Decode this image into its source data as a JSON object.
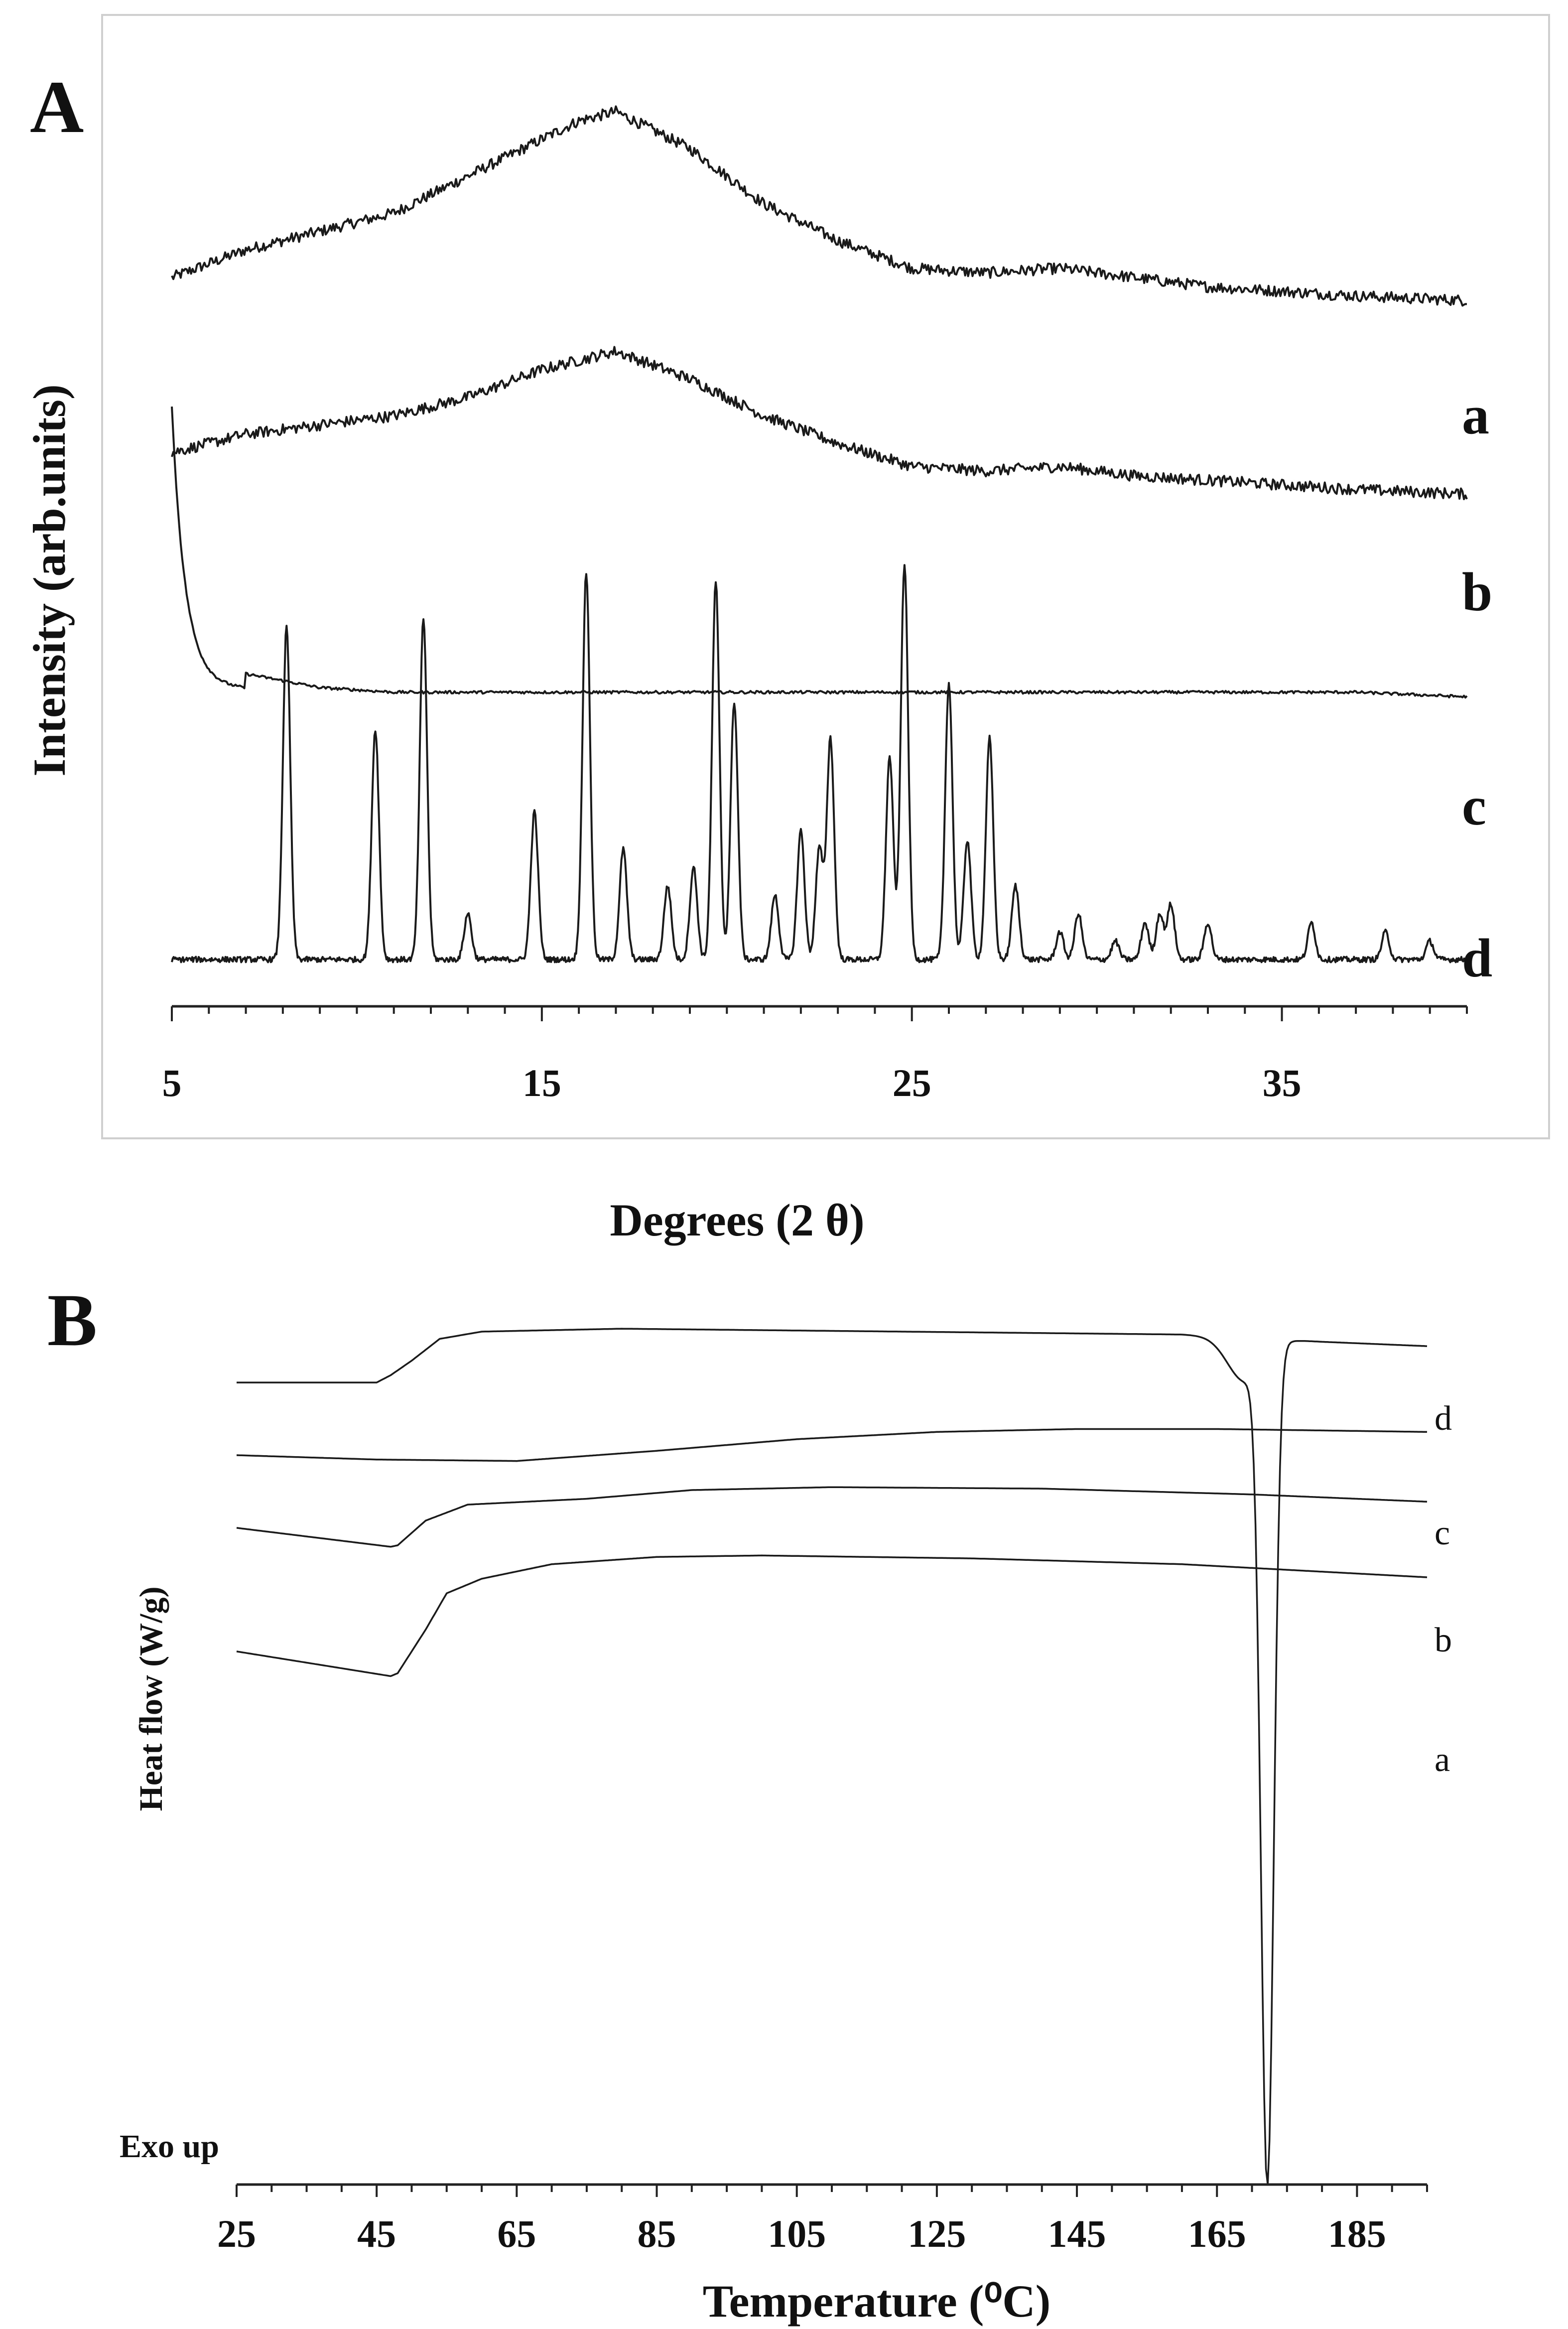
{
  "figure": {
    "panel_a_letter": "A",
    "panel_b_letter": "B"
  },
  "chart_data": [
    {
      "type": "line",
      "panel": "A",
      "title": "",
      "xlabel": "Degrees (2 θ)",
      "ylabel": "Intensity (arb.units)",
      "xlim": [
        5,
        40
      ],
      "xticks": [
        5,
        15,
        25,
        35
      ],
      "x": [
        5,
        7,
        9,
        11,
        13,
        15,
        16,
        17,
        19,
        21,
        23,
        25,
        27,
        29,
        31,
        33,
        35,
        37,
        40
      ],
      "series": [
        {
          "name": "a",
          "values": [
            0.78,
            0.81,
            0.83,
            0.85,
            0.89,
            0.93,
            0.95,
            0.96,
            0.92,
            0.86,
            0.82,
            0.79,
            0.785,
            0.79,
            0.78,
            0.77,
            0.765,
            0.76,
            0.755
          ]
        },
        {
          "name": "b",
          "values": [
            0.59,
            0.61,
            0.62,
            0.63,
            0.65,
            0.68,
            0.69,
            0.7,
            0.67,
            0.63,
            0.6,
            0.575,
            0.57,
            0.575,
            0.565,
            0.56,
            0.555,
            0.55,
            0.545
          ]
        },
        {
          "name": "c",
          "values": [
            0.62,
            0.35,
            0.335,
            0.33,
            0.33,
            0.33,
            0.33,
            0.33,
            0.33,
            0.33,
            0.33,
            0.33,
            0.33,
            0.33,
            0.33,
            0.33,
            0.33,
            0.33,
            0.325
          ]
        },
        {
          "name": "d",
          "peaks": [
            {
              "x": 8.1,
              "h": 0.36
            },
            {
              "x": 10.5,
              "h": 0.25
            },
            {
              "x": 11.8,
              "h": 0.37
            },
            {
              "x": 13.0,
              "h": 0.05
            },
            {
              "x": 14.8,
              "h": 0.16
            },
            {
              "x": 16.2,
              "h": 0.42
            },
            {
              "x": 17.2,
              "h": 0.12
            },
            {
              "x": 18.4,
              "h": 0.08
            },
            {
              "x": 19.1,
              "h": 0.1
            },
            {
              "x": 19.7,
              "h": 0.41
            },
            {
              "x": 20.2,
              "h": 0.28
            },
            {
              "x": 21.3,
              "h": 0.07
            },
            {
              "x": 22.0,
              "h": 0.14
            },
            {
              "x": 22.5,
              "h": 0.12
            },
            {
              "x": 22.8,
              "h": 0.24
            },
            {
              "x": 24.4,
              "h": 0.22
            },
            {
              "x": 24.8,
              "h": 0.43
            },
            {
              "x": 26.0,
              "h": 0.3
            },
            {
              "x": 26.5,
              "h": 0.13
            },
            {
              "x": 27.1,
              "h": 0.24
            },
            {
              "x": 27.8,
              "h": 0.08
            },
            {
              "x": 29.0,
              "h": 0.03
            },
            {
              "x": 29.5,
              "h": 0.05
            },
            {
              "x": 30.5,
              "h": 0.02
            },
            {
              "x": 31.3,
              "h": 0.04
            },
            {
              "x": 31.7,
              "h": 0.05
            },
            {
              "x": 32.0,
              "h": 0.06
            },
            {
              "x": 33.0,
              "h": 0.04
            },
            {
              "x": 35.8,
              "h": 0.04
            },
            {
              "x": 37.8,
              "h": 0.03
            },
            {
              "x": 39.0,
              "h": 0.02
            }
          ],
          "baseline": 0.04
        }
      ]
    },
    {
      "type": "line",
      "panel": "B",
      "title": "",
      "xlabel": "Temperature (⁰C)",
      "ylabel": "Heat flow (W/g)",
      "annotation": "Exo up",
      "xlim": [
        25,
        195
      ],
      "xticks": [
        25,
        45,
        65,
        85,
        105,
        125,
        145,
        165,
        185
      ],
      "series": [
        {
          "name": "d",
          "x": [
            25,
            45,
            47,
            50,
            54,
            60,
            80,
            120,
            160,
            166,
            169,
            171,
            172,
            173,
            174,
            176,
            180,
            195
          ],
          "values": [
            0.88,
            0.88,
            0.885,
            0.895,
            0.91,
            0.915,
            0.917,
            0.915,
            0.913,
            0.905,
            0.86,
            0.6,
            0.35,
            0.6,
            0.88,
            0.905,
            0.908,
            0.905
          ]
        },
        {
          "name": "c",
          "x": [
            25,
            45,
            65,
            85,
            105,
            125,
            145,
            165,
            195
          ],
          "values": [
            0.83,
            0.827,
            0.826,
            0.833,
            0.841,
            0.846,
            0.848,
            0.848,
            0.846
          ]
        },
        {
          "name": "b",
          "x": [
            25,
            47,
            48,
            52,
            58,
            75,
            90,
            110,
            140,
            170,
            195
          ],
          "values": [
            0.78,
            0.767,
            0.768,
            0.785,
            0.796,
            0.8,
            0.806,
            0.808,
            0.807,
            0.803,
            0.798
          ]
        },
        {
          "name": "a",
          "x": [
            25,
            47,
            48,
            52,
            55,
            60,
            70,
            85,
            100,
            130,
            160,
            195
          ],
          "values": [
            0.695,
            0.678,
            0.68,
            0.71,
            0.735,
            0.745,
            0.755,
            0.76,
            0.761,
            0.759,
            0.755,
            0.746
          ]
        }
      ]
    }
  ]
}
